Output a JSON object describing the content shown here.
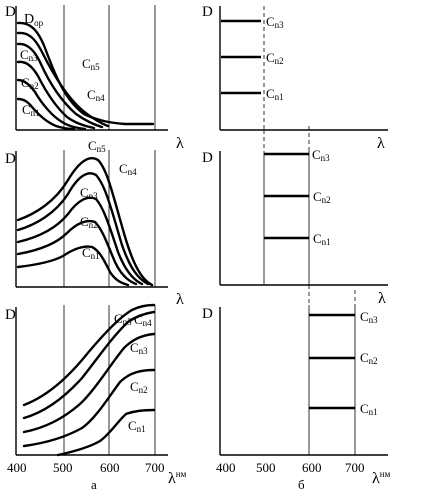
{
  "axis_letter_d": "D",
  "axis_letter_lambda": "λ",
  "lambda_unit": "нм",
  "d_or_main": "D",
  "d_or_sub": "ор",
  "tick_400": "400",
  "tick_500": "500",
  "tick_600": "600",
  "tick_700": "700",
  "label_a": "а",
  "label_b": "б",
  "series": [
    {
      "main": "C",
      "sub": "n1"
    },
    {
      "main": "C",
      "sub": "n2"
    },
    {
      "main": "C",
      "sub": "n3"
    },
    {
      "main": "C",
      "sub": "n4"
    },
    {
      "main": "C",
      "sub": "n5"
    }
  ]
}
